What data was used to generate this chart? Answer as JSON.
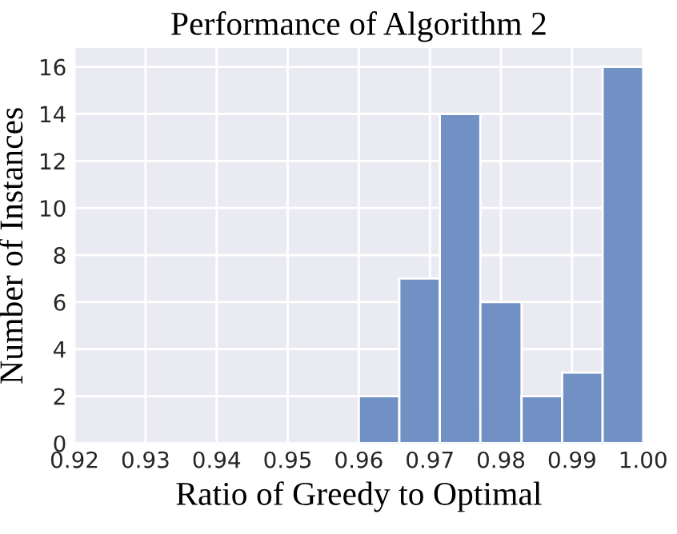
{
  "chart_data": {
    "type": "histogram",
    "title": "Performance of Algorithm 2",
    "xlabel": "Ratio of Greedy to Optimal",
    "ylabel": "Number of Instances",
    "bins": [
      0.96,
      0.9657,
      0.9714,
      0.9771,
      0.9829,
      0.9886,
      0.9943,
      1.0
    ],
    "values": [
      2,
      7,
      14,
      6,
      2,
      3,
      16
    ],
    "color": "#7191c5",
    "xlim": [
      0.92,
      1.0
    ],
    "xticks": [
      {
        "value": 0.92,
        "label": "0.92"
      },
      {
        "value": 0.93,
        "label": "0.93"
      },
      {
        "value": 0.94,
        "label": "0.94"
      },
      {
        "value": 0.95,
        "label": "0.95"
      },
      {
        "value": 0.96,
        "label": "0.96"
      },
      {
        "value": 0.97,
        "label": "0.97"
      },
      {
        "value": 0.98,
        "label": "0.98"
      },
      {
        "value": 0.99,
        "label": "0.99"
      },
      {
        "value": 1.0,
        "label": "1.00"
      }
    ],
    "ylim": [
      0,
      16.8
    ],
    "yticks": [
      0,
      2,
      4,
      6,
      8,
      10,
      12,
      14,
      16
    ],
    "grid": true
  }
}
